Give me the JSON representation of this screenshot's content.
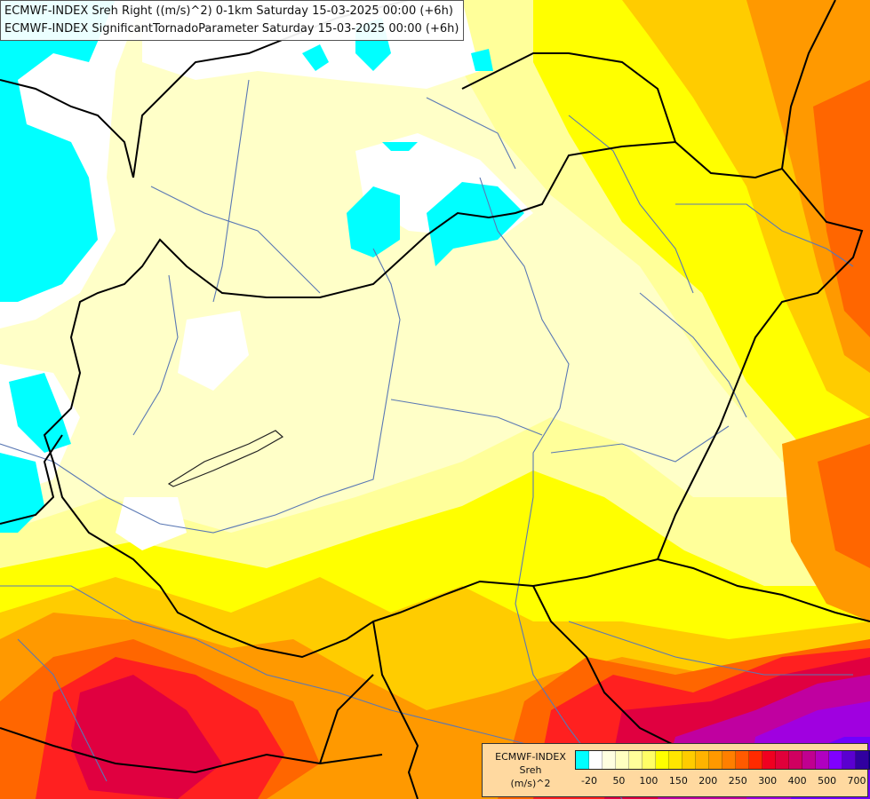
{
  "header": {
    "line1": "ECMWF-INDEX Sreh Right ((m/s)^2) 0-1km Saturday 15-03-2025 00:00 (+6h)",
    "line2": "ECMWF-INDEX SignificantTornadoParameter Saturday 15-03-2025 00:00 (+6h)"
  },
  "legend": {
    "source": "ECMWF-INDEX",
    "variable": "Sreh",
    "unit": "(m/s)^2",
    "colors": [
      "#00ffff",
      "#ffffff",
      "#ffffe0",
      "#ffffc0",
      "#ffff9a",
      "#ffff66",
      "#ffff00",
      "#ffe600",
      "#ffcc00",
      "#ffb300",
      "#ff9900",
      "#ff7f00",
      "#ff5a00",
      "#ff2a00",
      "#f00020",
      "#e0003a",
      "#d00060",
      "#c00090",
      "#b000c0",
      "#8000ff",
      "#5a00d0",
      "#3000a0",
      "#00007a",
      "#000060"
    ],
    "ticks": [
      "-20",
      "50",
      "100",
      "150",
      "200",
      "250",
      "300",
      "400",
      "500",
      "700"
    ]
  },
  "map": {
    "field_colors": {
      "cyan": "#00ffff",
      "white": "#ffffff",
      "pale": "#ffffc8",
      "light_yellow": "#ffff9a",
      "yellow": "#ffff00",
      "gold": "#ffcc00",
      "orange": "#ff9900",
      "dark_orange": "#ff6600",
      "red": "#ff2020",
      "crimson": "#e00040",
      "magenta": "#c000a0",
      "purple": "#a000e0",
      "violet": "#7000ff"
    },
    "border_color": "#000000",
    "river_color": "#5a78b4"
  }
}
